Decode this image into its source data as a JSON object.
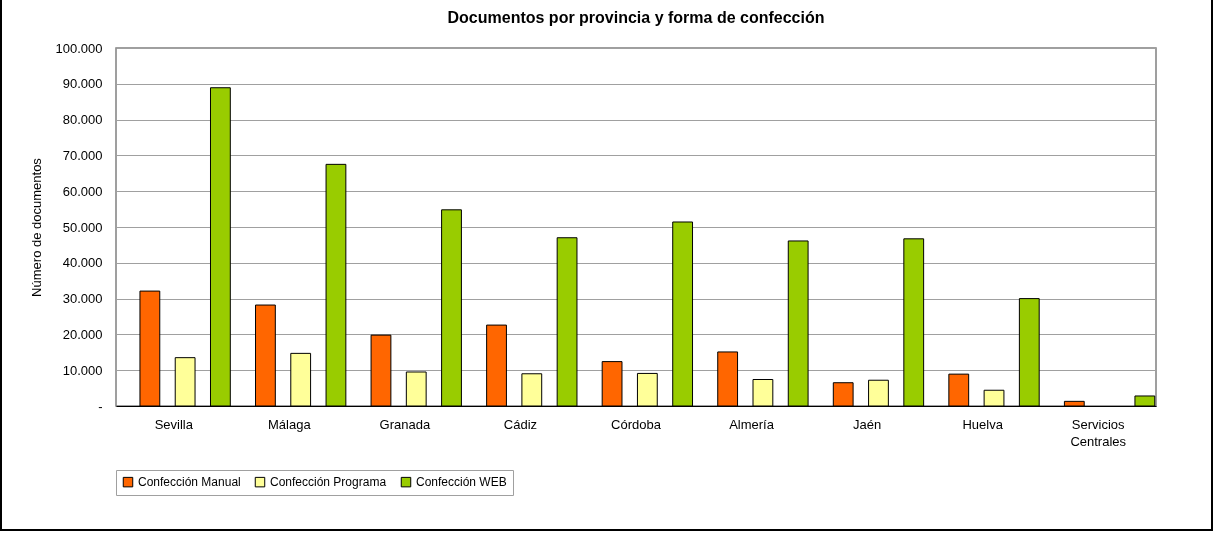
{
  "chart_data": {
    "type": "bar",
    "title": "Documentos por provincia y forma de confección",
    "ylabel": "Número de documentos",
    "categories": [
      "Sevilla",
      "Málaga",
      "Granada",
      "Cádiz",
      "Córdoba",
      "Almería",
      "Jaén",
      "Huelva",
      "Servicios Centrales"
    ],
    "series": [
      {
        "name": "Confección Manual",
        "color": "#ff6600",
        "values": [
          32100,
          28200,
          19800,
          22600,
          12400,
          15100,
          6500,
          8900,
          1300
        ]
      },
      {
        "name": "Confección Programa",
        "color": "#ffff99",
        "values": [
          13500,
          14700,
          9500,
          9000,
          9100,
          7400,
          7200,
          4400,
          null
        ]
      },
      {
        "name": "Confección WEB",
        "color": "#99cc00",
        "values": [
          88900,
          67500,
          54800,
          47000,
          51400,
          46100,
          46700,
          30000,
          2800
        ]
      }
    ],
    "ylim": [
      0,
      100000
    ],
    "yticks": [
      {
        "value": 0,
        "label": "-"
      },
      {
        "value": 10000,
        "label": "10.000"
      },
      {
        "value": 20000,
        "label": "20.000"
      },
      {
        "value": 30000,
        "label": "30.000"
      },
      {
        "value": 40000,
        "label": "40.000"
      },
      {
        "value": 50000,
        "label": "50.000"
      },
      {
        "value": 60000,
        "label": "60.000"
      },
      {
        "value": 70000,
        "label": "70.000"
      },
      {
        "value": 80000,
        "label": "80.000"
      },
      {
        "value": 90000,
        "label": "90.000"
      },
      {
        "value": 100000,
        "label": "100.000"
      }
    ],
    "grid": "y",
    "legend": "bottom"
  }
}
